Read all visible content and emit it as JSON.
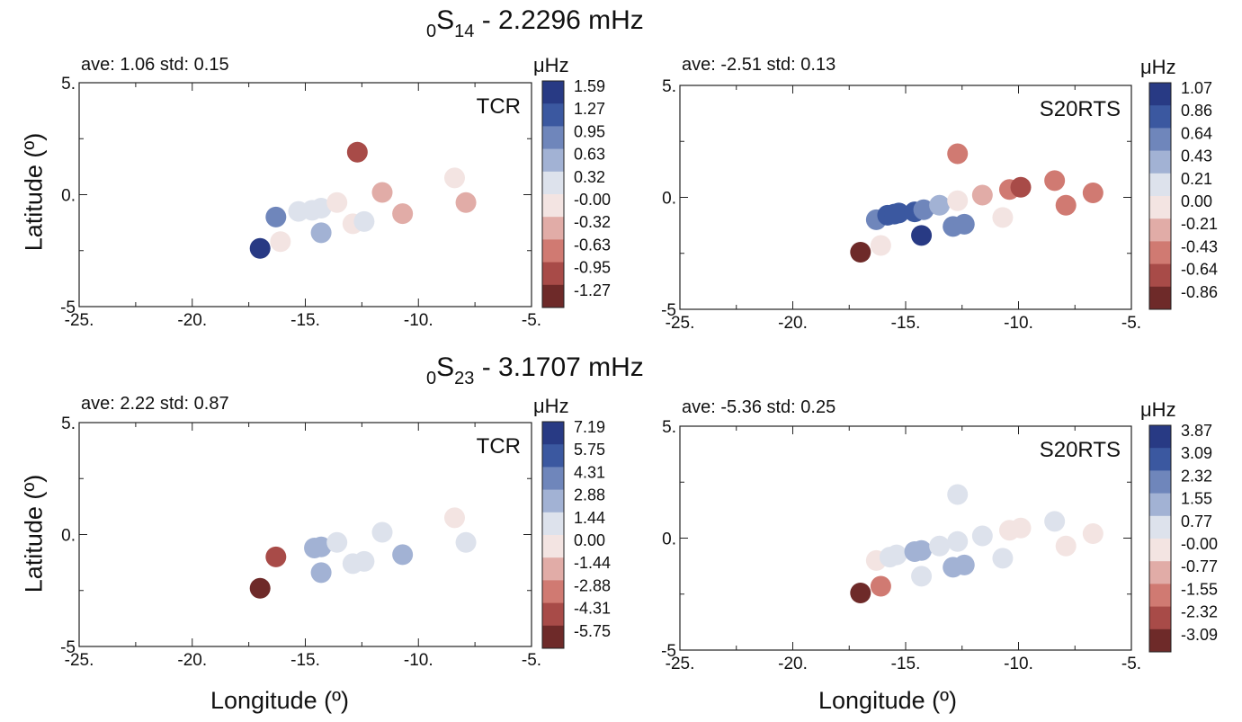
{
  "rows": [
    {
      "title_prefix": "0",
      "title_main": "S",
      "title_sub": "14",
      "title_rest": " - 2.2296 mHz"
    },
    {
      "title_prefix": "0",
      "title_main": "S",
      "title_sub": "23",
      "title_rest": " - 3.1707 mHz"
    }
  ],
  "ylabels": [
    "Latitude (º)",
    "Latitude (º)"
  ],
  "xlabels": [
    "Longitude (º)",
    "Longitude (º)"
  ],
  "chart_data": [
    {
      "type": "scatter",
      "model": "TCR",
      "stats": "ave:   1.06 std:  0.15",
      "xlim": [
        -25,
        -5
      ],
      "ylim": [
        -5,
        5
      ],
      "xticks": [
        "-25.",
        "-20.",
        "-15.",
        "-10.",
        "-5."
      ],
      "yticks": [
        "5.",
        "0.",
        "-5"
      ],
      "colorbar": {
        "unit": "μHz",
        "labels": [
          "1.59",
          "1.27",
          "0.95",
          "0.63",
          "0.32",
          "-0.00",
          "-0.32",
          "-0.63",
          "-0.95",
          "-1.27"
        ]
      },
      "points": [
        {
          "x": -17.0,
          "y": -2.4,
          "bin": 0
        },
        {
          "x": -16.1,
          "y": -2.1,
          "bin": 5
        },
        {
          "x": -16.3,
          "y": -1.0,
          "bin": 2
        },
        {
          "x": -15.3,
          "y": -0.75,
          "bin": 4
        },
        {
          "x": -14.7,
          "y": -0.7,
          "bin": 4
        },
        {
          "x": -14.3,
          "y": -0.6,
          "bin": 4
        },
        {
          "x": -13.6,
          "y": -0.35,
          "bin": 5
        },
        {
          "x": -14.3,
          "y": -1.7,
          "bin": 3
        },
        {
          "x": -12.9,
          "y": -1.3,
          "bin": 5
        },
        {
          "x": -12.4,
          "y": -1.2,
          "bin": 4
        },
        {
          "x": -12.7,
          "y": 1.9,
          "bin": 8
        },
        {
          "x": -11.6,
          "y": 0.1,
          "bin": 6
        },
        {
          "x": -10.7,
          "y": -0.85,
          "bin": 6
        },
        {
          "x": -8.4,
          "y": 0.75,
          "bin": 5
        },
        {
          "x": -7.9,
          "y": -0.35,
          "bin": 6
        }
      ]
    },
    {
      "type": "scatter",
      "model": "S20RTS",
      "stats": "ave:  -2.51 std:  0.13",
      "xlim": [
        -25,
        -5
      ],
      "ylim": [
        -5,
        5
      ],
      "xticks": [
        "-25.",
        "-20.",
        "-15.",
        "-10.",
        "-5."
      ],
      "yticks": [
        "5.",
        "0.",
        "-5"
      ],
      "colorbar": {
        "unit": "μHz",
        "labels": [
          "1.07",
          "0.86",
          "0.64",
          "0.43",
          "0.21",
          "0.00",
          "-0.21",
          "-0.43",
          "-0.64",
          "-0.86"
        ]
      },
      "points": [
        {
          "x": -17.0,
          "y": -2.45,
          "bin": 9
        },
        {
          "x": -16.1,
          "y": -2.15,
          "bin": 5
        },
        {
          "x": -16.3,
          "y": -1.0,
          "bin": 2
        },
        {
          "x": -15.8,
          "y": -0.8,
          "bin": 1
        },
        {
          "x": -15.5,
          "y": -0.75,
          "bin": 1
        },
        {
          "x": -15.3,
          "y": -0.7,
          "bin": 1
        },
        {
          "x": -14.6,
          "y": -0.65,
          "bin": 1
        },
        {
          "x": -14.2,
          "y": -0.55,
          "bin": 2
        },
        {
          "x": -13.5,
          "y": -0.35,
          "bin": 3
        },
        {
          "x": -14.3,
          "y": -1.7,
          "bin": 0
        },
        {
          "x": -12.9,
          "y": -1.3,
          "bin": 2
        },
        {
          "x": -12.4,
          "y": -1.2,
          "bin": 2
        },
        {
          "x": -12.7,
          "y": -0.15,
          "bin": 5
        },
        {
          "x": -12.7,
          "y": 1.95,
          "bin": 7
        },
        {
          "x": -11.6,
          "y": 0.1,
          "bin": 6
        },
        {
          "x": -10.7,
          "y": -0.9,
          "bin": 5
        },
        {
          "x": -10.4,
          "y": 0.35,
          "bin": 7
        },
        {
          "x": -9.9,
          "y": 0.45,
          "bin": 8
        },
        {
          "x": -8.4,
          "y": 0.75,
          "bin": 7
        },
        {
          "x": -7.9,
          "y": -0.35,
          "bin": 7
        },
        {
          "x": -6.7,
          "y": 0.2,
          "bin": 7
        }
      ]
    },
    {
      "type": "scatter",
      "model": "TCR",
      "stats": "ave:   2.22 std:  0.87",
      "xlim": [
        -25,
        -5
      ],
      "ylim": [
        -5,
        5
      ],
      "xticks": [
        "-25.",
        "-20.",
        "-15.",
        "-10.",
        "-5."
      ],
      "yticks": [
        "5.",
        "0.",
        "-5"
      ],
      "colorbar": {
        "unit": "μHz",
        "labels": [
          "7.19",
          "5.75",
          "4.31",
          "2.88",
          "1.44",
          "0.00",
          "-1.44",
          "-2.88",
          "-4.31",
          "-5.75"
        ]
      },
      "points": [
        {
          "x": -17.0,
          "y": -2.4,
          "bin": 9
        },
        {
          "x": -16.3,
          "y": -1.0,
          "bin": 8
        },
        {
          "x": -14.6,
          "y": -0.6,
          "bin": 3
        },
        {
          "x": -14.3,
          "y": -0.55,
          "bin": 3
        },
        {
          "x": -13.6,
          "y": -0.35,
          "bin": 4
        },
        {
          "x": -14.3,
          "y": -1.7,
          "bin": 3
        },
        {
          "x": -12.9,
          "y": -1.3,
          "bin": 4
        },
        {
          "x": -12.4,
          "y": -1.2,
          "bin": 4
        },
        {
          "x": -11.6,
          "y": 0.1,
          "bin": 4
        },
        {
          "x": -10.7,
          "y": -0.9,
          "bin": 3
        },
        {
          "x": -8.4,
          "y": 0.75,
          "bin": 5
        },
        {
          "x": -7.9,
          "y": -0.35,
          "bin": 4
        }
      ]
    },
    {
      "type": "scatter",
      "model": "S20RTS",
      "stats": "ave:  -5.36 std:  0.25",
      "xlim": [
        -25,
        -5
      ],
      "ylim": [
        -5,
        5
      ],
      "xticks": [
        "-25.",
        "-20.",
        "-15.",
        "-10.",
        "-5."
      ],
      "yticks": [
        "5.",
        "0.",
        "-5"
      ],
      "colorbar": {
        "unit": "μHz",
        "labels": [
          "3.87",
          "3.09",
          "2.32",
          "1.55",
          "0.77",
          "-0.00",
          "-0.77",
          "-1.55",
          "-2.32",
          "-3.09"
        ]
      },
      "points": [
        {
          "x": -17.0,
          "y": -2.45,
          "bin": 9
        },
        {
          "x": -16.1,
          "y": -2.15,
          "bin": 7
        },
        {
          "x": -16.3,
          "y": -1.0,
          "bin": 5
        },
        {
          "x": -15.7,
          "y": -0.85,
          "bin": 4
        },
        {
          "x": -15.4,
          "y": -0.75,
          "bin": 4
        },
        {
          "x": -14.6,
          "y": -0.6,
          "bin": 3
        },
        {
          "x": -14.3,
          "y": -0.55,
          "bin": 3
        },
        {
          "x": -13.5,
          "y": -0.35,
          "bin": 4
        },
        {
          "x": -14.3,
          "y": -1.7,
          "bin": 4
        },
        {
          "x": -12.9,
          "y": -1.3,
          "bin": 3
        },
        {
          "x": -12.4,
          "y": -1.2,
          "bin": 3
        },
        {
          "x": -12.7,
          "y": -0.15,
          "bin": 4
        },
        {
          "x": -12.7,
          "y": 1.95,
          "bin": 4
        },
        {
          "x": -11.6,
          "y": 0.1,
          "bin": 4
        },
        {
          "x": -10.7,
          "y": -0.9,
          "bin": 4
        },
        {
          "x": -10.4,
          "y": 0.35,
          "bin": 5
        },
        {
          "x": -9.9,
          "y": 0.45,
          "bin": 5
        },
        {
          "x": -8.4,
          "y": 0.75,
          "bin": 4
        },
        {
          "x": -7.9,
          "y": -0.35,
          "bin": 5
        },
        {
          "x": -6.7,
          "y": 0.2,
          "bin": 5
        }
      ]
    }
  ],
  "colors": {
    "scale": [
      "#283a84",
      "#3b58a0",
      "#6f86bb",
      "#a2b2d4",
      "#dde2ec",
      "#f3e4e2",
      "#e1aca7",
      "#d07a72",
      "#a84b48",
      "#6e2a29"
    ]
  }
}
